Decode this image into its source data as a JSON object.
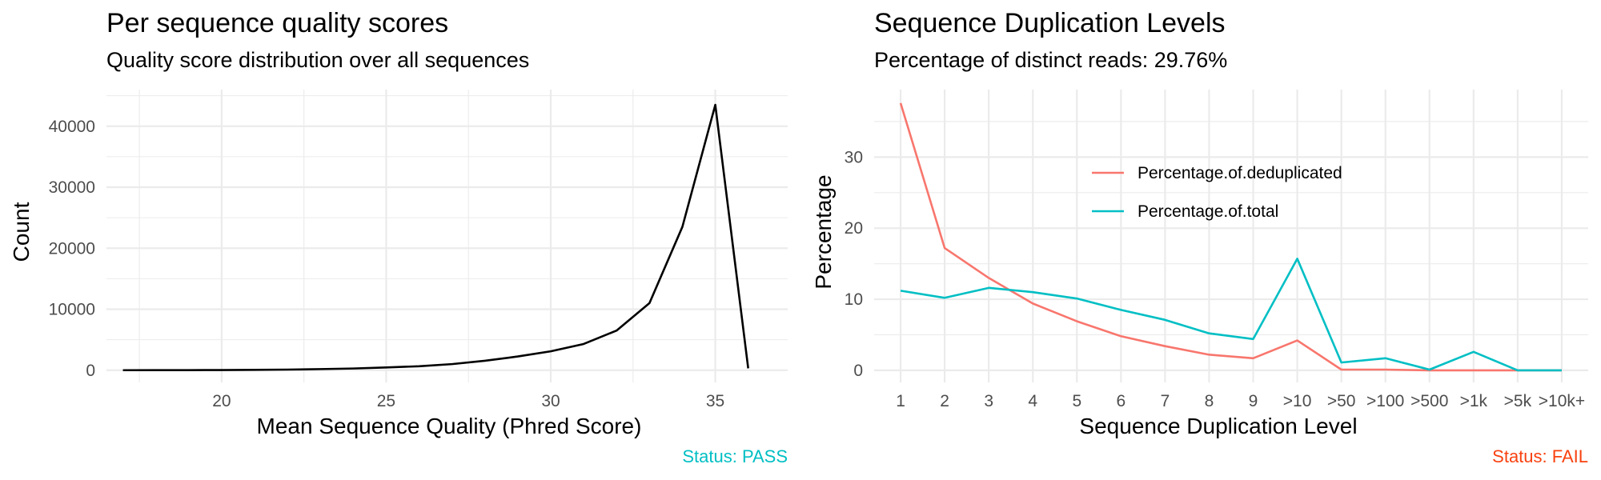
{
  "chart_data": [
    {
      "type": "line",
      "title": "Per sequence quality scores",
      "subtitle": "Quality score distribution over all sequences",
      "xlabel": "Mean Sequence Quality (Phred Score)",
      "ylabel": "Count",
      "xlim": [
        16.5,
        37.2
      ],
      "ylim": [
        -2000,
        46000
      ],
      "x_ticks": [
        20,
        25,
        30,
        35
      ],
      "y_ticks": [
        0,
        10000,
        20000,
        30000,
        40000
      ],
      "grid": true,
      "series": [
        {
          "color": "#000000",
          "x": [
            17,
            18,
            19,
            20,
            21,
            22,
            23,
            24,
            25,
            26,
            27,
            28,
            29,
            30,
            31,
            32,
            33,
            34,
            35,
            36
          ],
          "y": [
            0,
            5,
            15,
            30,
            60,
            100,
            180,
            280,
            450,
            650,
            1000,
            1550,
            2250,
            3100,
            4300,
            6500,
            11000,
            23500,
            43500,
            300
          ]
        }
      ],
      "status": {
        "text": "Status: PASS",
        "color": "#00bfc4"
      }
    },
    {
      "type": "line",
      "title": "Sequence Duplication Levels",
      "subtitle": "Percentage of distinct reads: 29.76%",
      "xlabel": "Sequence Duplication Level",
      "ylabel": "Percentage",
      "categories": [
        "1",
        "2",
        "3",
        "4",
        "5",
        "6",
        "7",
        "8",
        "9",
        ">10",
        ">50",
        ">100",
        ">500",
        ">1k",
        ">5k",
        ">10k+"
      ],
      "ylim": [
        -1.7,
        39.5
      ],
      "y_ticks": [
        0,
        10,
        20,
        30
      ],
      "grid": true,
      "legend": "inside-top-center",
      "series": [
        {
          "name": "Percentage.of.deduplicated",
          "color": "#f8766d",
          "values": [
            37.6,
            17.2,
            13.0,
            9.4,
            6.9,
            4.8,
            3.4,
            2.2,
            1.7,
            4.2,
            0.1,
            0.1,
            0.0,
            0.0,
            0.0,
            0.0
          ]
        },
        {
          "name": "Percentage.of.total",
          "color": "#00bfc4",
          "values": [
            11.2,
            10.2,
            11.6,
            11.0,
            10.1,
            8.5,
            7.1,
            5.2,
            4.4,
            15.7,
            1.1,
            1.7,
            0.1,
            2.6,
            0.0,
            0.0
          ]
        }
      ],
      "status": {
        "text": "Status: FAIL",
        "color": "#f8410f"
      }
    }
  ]
}
